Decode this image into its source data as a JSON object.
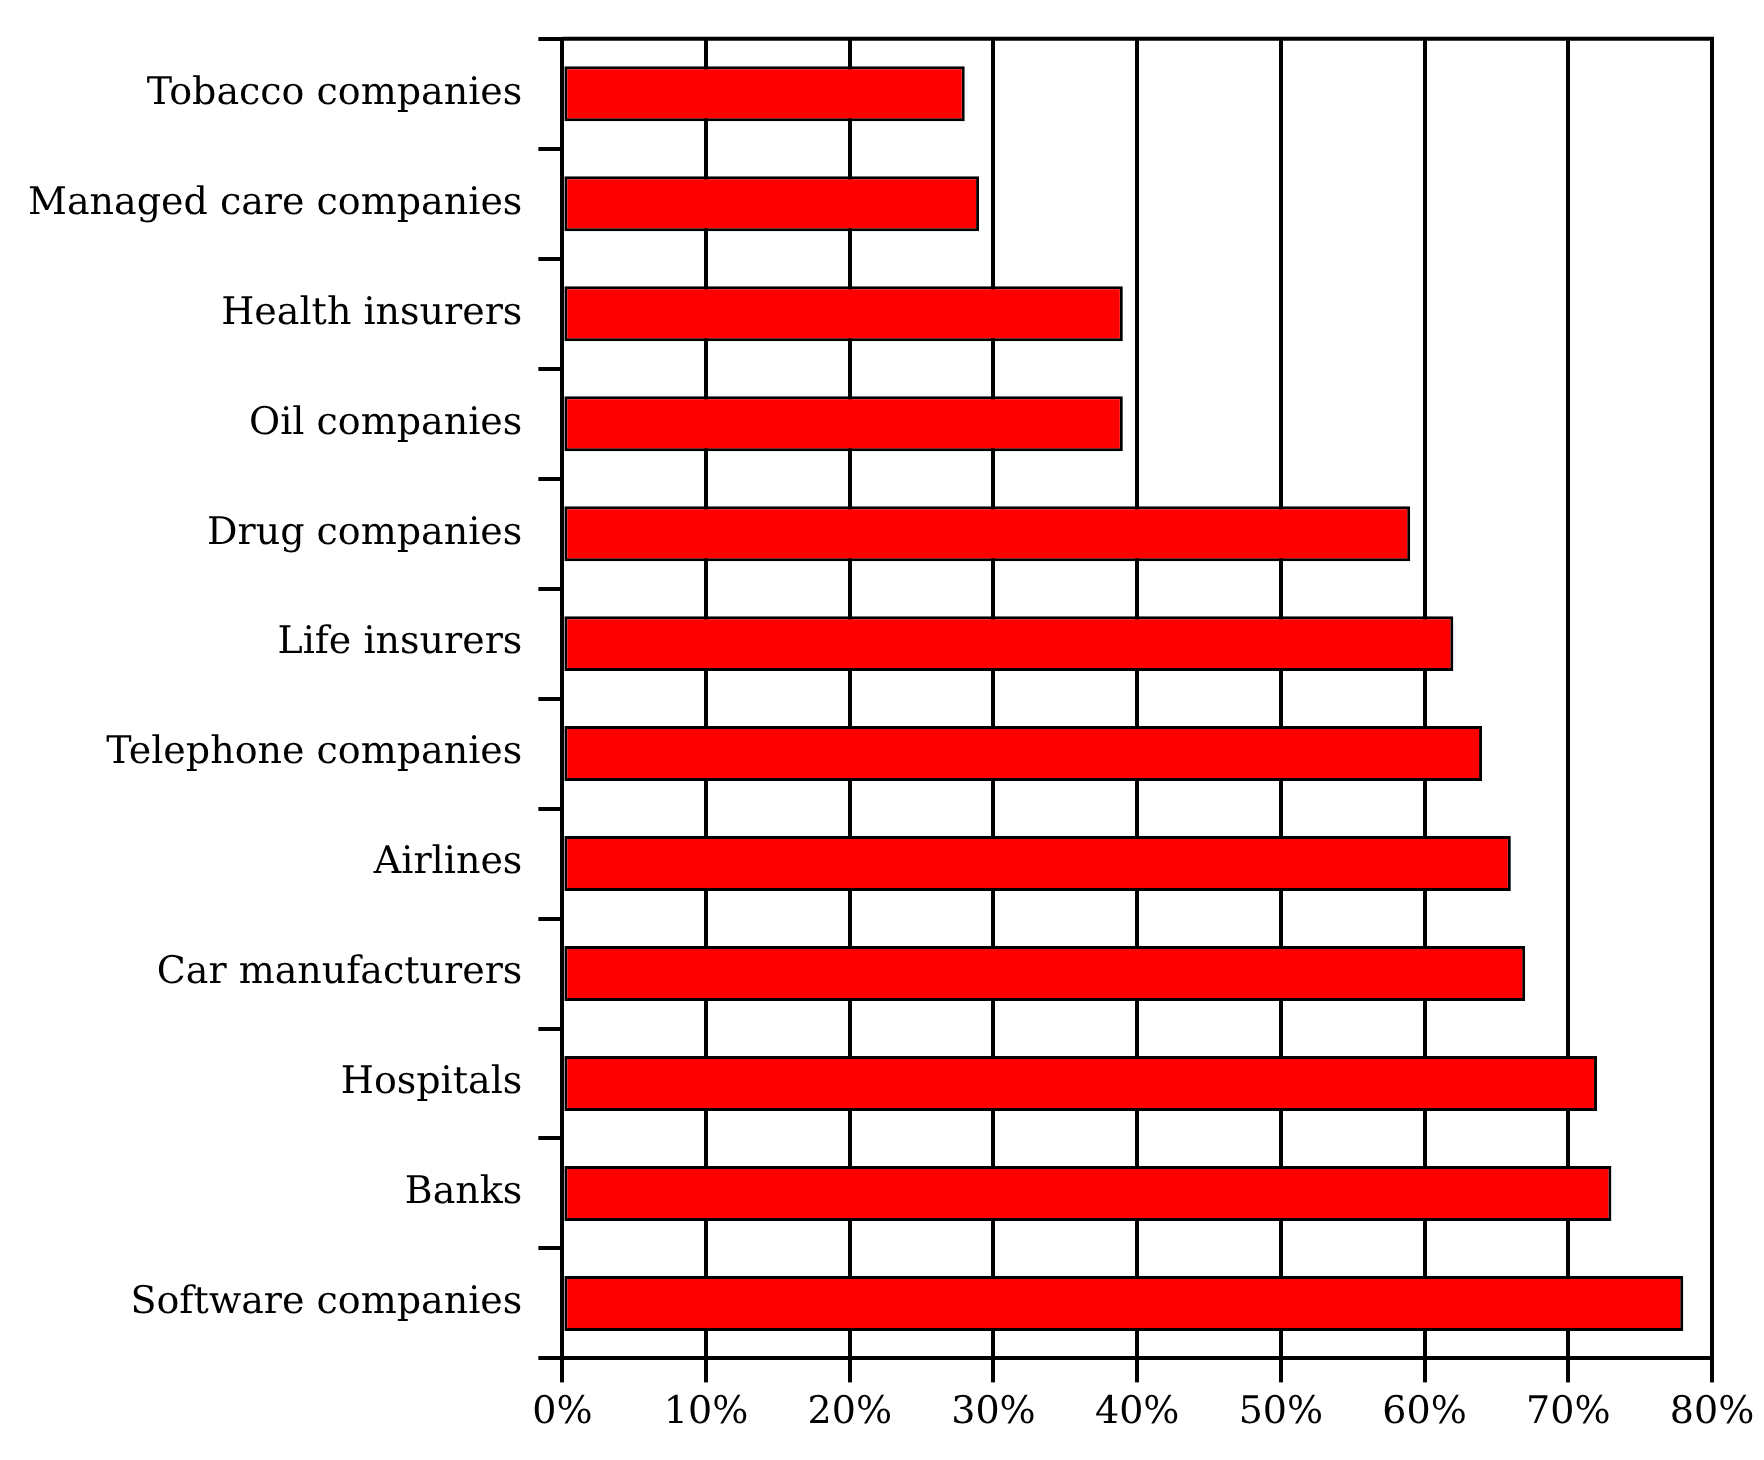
{
  "chart_data": {
    "type": "bar",
    "orientation": "horizontal",
    "categories": [
      "Tobacco companies",
      "Managed care companies",
      "Health insurers",
      "Oil companies",
      "Drug companies",
      "Life insurers",
      "Telephone companies",
      "Airlines",
      "Car manufacturers",
      "Hospitals",
      "Banks",
      "Software companies"
    ],
    "values": [
      28,
      29,
      39,
      39,
      59,
      62,
      64,
      66,
      67,
      72,
      73,
      78
    ],
    "color": "#ff0000",
    "xlim": [
      0,
      80
    ],
    "xticks": [
      {
        "value": 0,
        "label": "0%"
      },
      {
        "value": 10,
        "label": "10%"
      },
      {
        "value": 20,
        "label": "20%"
      },
      {
        "value": 30,
        "label": "30%"
      },
      {
        "value": 40,
        "label": "40%"
      },
      {
        "value": 50,
        "label": "50%"
      },
      {
        "value": 60,
        "label": "60%"
      },
      {
        "value": 70,
        "label": "70%"
      },
      {
        "value": 80,
        "label": "80%"
      }
    ],
    "grid": "x",
    "legend": false
  }
}
